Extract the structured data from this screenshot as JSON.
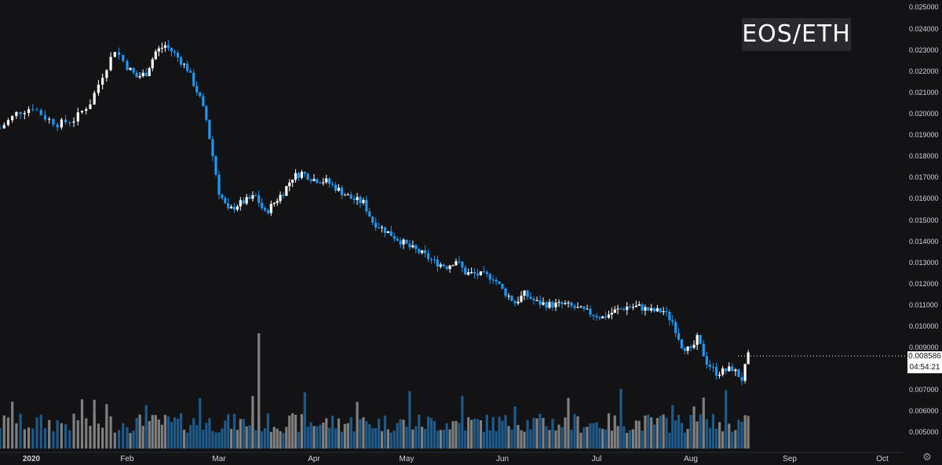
{
  "symbol": "EOS/ETH",
  "last_price": "0.008586",
  "countdown": "04:54:21",
  "colors": {
    "up": "#ffffff",
    "down": "#2196f3",
    "vol_up": "#7f7f7f",
    "vol_down": "#1e5a8a",
    "background": "#131316",
    "axis_text": "#d1d4dc"
  },
  "icons": {
    "settings": "gear-icon"
  },
  "chart_data": {
    "type": "candlestick",
    "x_axis": {
      "labels": [
        "2020",
        "Feb",
        "Mar",
        "Apr",
        "May",
        "Jun",
        "Jul",
        "Aug",
        "Sep",
        "Oct"
      ],
      "range": [
        "2020-01-01",
        "2020-10-01"
      ]
    },
    "y_axis": {
      "ticks": [
        "0.025000",
        "0.024000",
        "0.023000",
        "0.022000",
        "0.021000",
        "0.020000",
        "0.019000",
        "0.018000",
        "0.017000",
        "0.016000",
        "0.015000",
        "0.014000",
        "0.013000",
        "0.012000",
        "0.011000",
        "0.010000",
        "0.009000",
        "0.007000",
        "0.006000",
        "0.005000"
      ],
      "range": [
        0.0045,
        0.025
      ]
    },
    "close_series": [
      [
        "2020-01-01",
        0.0193
      ],
      [
        "2020-01-05",
        0.02
      ],
      [
        "2020-01-09",
        0.0203
      ],
      [
        "2020-01-12",
        0.0198
      ],
      [
        "2020-01-15",
        0.0195
      ],
      [
        "2020-01-19",
        0.0197
      ],
      [
        "2020-01-23",
        0.0205
      ],
      [
        "2020-01-26",
        0.0218
      ],
      [
        "2020-01-29",
        0.023
      ],
      [
        "2020-02-01",
        0.0222
      ],
      [
        "2020-02-04",
        0.0217
      ],
      [
        "2020-02-07",
        0.0219
      ],
      [
        "2020-02-10",
        0.0229
      ],
      [
        "2020-02-13",
        0.0232
      ],
      [
        "2020-02-16",
        0.0228
      ],
      [
        "2020-02-20",
        0.0221
      ],
      [
        "2020-02-24",
        0.0207
      ],
      [
        "2020-02-26",
        0.0197
      ],
      [
        "2020-02-28",
        0.018
      ],
      [
        "2020-03-01",
        0.0163
      ],
      [
        "2020-03-04",
        0.0154
      ],
      [
        "2020-03-07",
        0.0157
      ],
      [
        "2020-03-10",
        0.0159
      ],
      [
        "2020-03-13",
        0.0161
      ],
      [
        "2020-03-16",
        0.0153
      ],
      [
        "2020-03-19",
        0.0158
      ],
      [
        "2020-03-22",
        0.0163
      ],
      [
        "2020-03-25",
        0.017
      ],
      [
        "2020-03-28",
        0.0172
      ],
      [
        "2020-04-01",
        0.0169
      ],
      [
        "2020-04-05",
        0.0168
      ],
      [
        "2020-04-09",
        0.0164
      ],
      [
        "2020-04-13",
        0.016
      ],
      [
        "2020-04-17",
        0.0158
      ],
      [
        "2020-04-20",
        0.0149
      ],
      [
        "2020-04-24",
        0.0145
      ],
      [
        "2020-04-28",
        0.0141
      ],
      [
        "2020-05-02",
        0.0137
      ],
      [
        "2020-05-06",
        0.0134
      ],
      [
        "2020-05-10",
        0.013
      ],
      [
        "2020-05-14",
        0.0128
      ],
      [
        "2020-05-17",
        0.0131
      ],
      [
        "2020-05-20",
        0.0125
      ],
      [
        "2020-05-25",
        0.0124
      ],
      [
        "2020-05-29",
        0.0123
      ],
      [
        "2020-06-01",
        0.0117
      ],
      [
        "2020-06-05",
        0.0111
      ],
      [
        "2020-06-08",
        0.0115
      ],
      [
        "2020-06-12",
        0.0111
      ],
      [
        "2020-06-16",
        0.011
      ],
      [
        "2020-06-21",
        0.011
      ],
      [
        "2020-06-25",
        0.0108
      ],
      [
        "2020-06-29",
        0.0106
      ],
      [
        "2020-07-03",
        0.0104
      ],
      [
        "2020-07-07",
        0.0107
      ],
      [
        "2020-07-11",
        0.0109
      ],
      [
        "2020-07-15",
        0.0109
      ],
      [
        "2020-07-19",
        0.0107
      ],
      [
        "2020-07-23",
        0.0107
      ],
      [
        "2020-07-26",
        0.0102
      ],
      [
        "2020-07-29",
        0.0091
      ],
      [
        "2020-08-01",
        0.0088
      ],
      [
        "2020-08-03",
        0.0094
      ],
      [
        "2020-08-06",
        0.0083
      ],
      [
        "2020-08-09",
        0.0078
      ],
      [
        "2020-08-12",
        0.0079
      ],
      [
        "2020-08-14",
        0.008
      ],
      [
        "2020-08-17",
        0.0075
      ],
      [
        "2020-08-19",
        0.008586
      ]
    ],
    "volume_max": 0.0097
  }
}
